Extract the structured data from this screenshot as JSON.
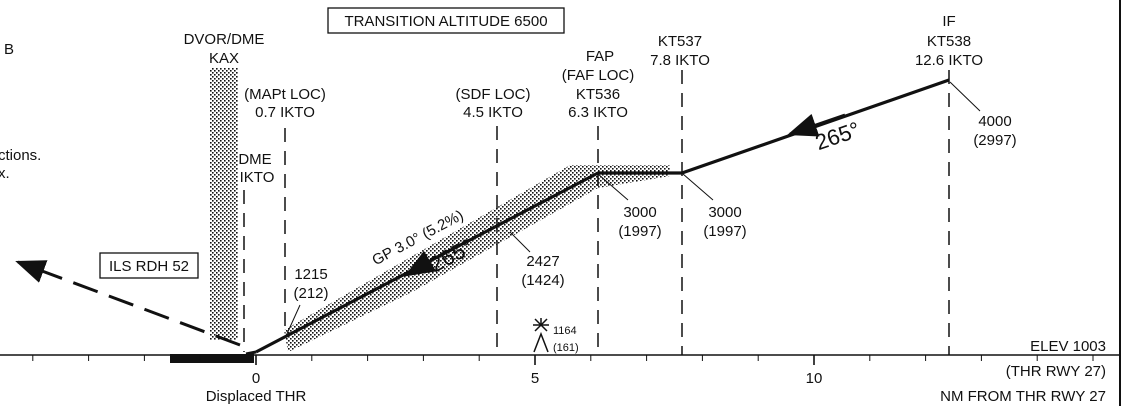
{
  "chart_data": {
    "type": "profile",
    "title": "",
    "transition_altitude": "TRANSITION ALTITUDE 6500",
    "edge_text": {
      "line1": "B",
      "line2": "ctions.",
      "line3": "x."
    },
    "x_axis": {
      "unit_label": "NM FROM THR RWY 27",
      "range_nm": [
        -4.6,
        15.3
      ],
      "major_ticks": [
        0,
        5,
        10
      ],
      "major_labels": [
        "0",
        "5",
        "10"
      ],
      "threshold_caption": "Displaced THR",
      "elev_label": "ELEV 1003",
      "elev_sub": "(THR RWY 27)"
    },
    "fixes": [
      {
        "id": "mapt",
        "nm": 0.5,
        "lines": [
          "(MAPt LOC)",
          "0.7 IKTO"
        ]
      },
      {
        "id": "dme",
        "nm": -0.2,
        "lines": [
          "DME",
          "IKTO"
        ]
      },
      {
        "id": "sdf",
        "nm": 4.25,
        "lines": [
          "(SDF LOC)",
          "4.5 IKTO"
        ]
      },
      {
        "id": "fap",
        "nm": 6.05,
        "lines": [
          "FAP",
          "(FAF LOC)",
          "KT536",
          "6.3 IKTO"
        ]
      },
      {
        "id": "kt537",
        "nm": 7.55,
        "lines": [
          "KT537",
          "7.8 IKTO"
        ]
      },
      {
        "id": "if",
        "nm": 12.35,
        "lines": [
          "IF",
          "KT538",
          "12.6 IKTO"
        ]
      }
    ],
    "navaid": {
      "nm": -0.6,
      "lines": [
        "DVOR/DME",
        "KAX"
      ]
    },
    "profile": [
      {
        "nm": -0.1,
        "alt": 1003
      },
      {
        "nm": 6.05,
        "alt": 3000
      },
      {
        "nm": 7.55,
        "alt": 3000
      },
      {
        "nm": 12.35,
        "alt": 4000
      }
    ],
    "altitude_labels": [
      {
        "id": "a1215",
        "lines": [
          "1215",
          "(212)"
        ]
      },
      {
        "id": "a2427",
        "lines": [
          "2427",
          "(1424)"
        ]
      },
      {
        "id": "a3000fap",
        "lines": [
          "3000",
          "(1997)"
        ]
      },
      {
        "id": "a3000kt",
        "lines": [
          "3000",
          "(1997)"
        ]
      },
      {
        "id": "a4000",
        "lines": [
          "4000",
          "(2997)"
        ]
      }
    ],
    "glidepath": {
      "label": "GP 3.0° (5.2%)",
      "course": "265°"
    },
    "inbound_course": "265°",
    "rdh_label": "ILS RDH 52",
    "obstacle": {
      "nm": 5.05,
      "elev": "1164",
      "height": "(161)"
    }
  }
}
